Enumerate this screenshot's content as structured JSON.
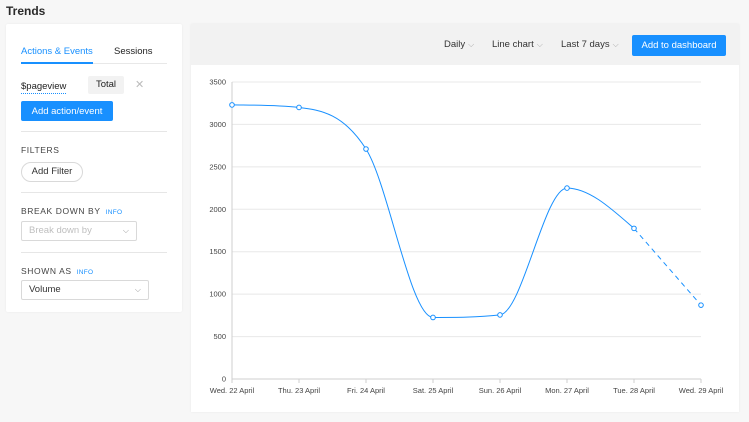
{
  "page": {
    "title": "Trends"
  },
  "sidebar": {
    "tabs": [
      {
        "label": "Actions & Events",
        "active": true
      },
      {
        "label": "Sessions",
        "active": false
      }
    ],
    "event": {
      "name": "$pageview",
      "math": "Total",
      "remove_icon": "close-icon"
    },
    "add_event_label": "Add action/event",
    "filters": {
      "heading": "FILTERS",
      "add_label": "Add Filter"
    },
    "breakdown": {
      "heading": "BREAK DOWN BY",
      "info": "INFO",
      "placeholder": "Break down by"
    },
    "shown_as": {
      "heading": "SHOWN AS",
      "info": "INFO",
      "value": "Volume"
    }
  },
  "toolbar": {
    "interval": "Daily",
    "chart_type": "Line chart",
    "date_range": "Last 7 days",
    "add_to_dashboard": "Add to dashboard"
  },
  "colors": {
    "accent": "#1890ff",
    "grid": "#e8e8e8",
    "background": "#f7f7f7"
  },
  "chart_data": {
    "type": "line",
    "categories": [
      "Wed. 22 April",
      "Thu. 23 April",
      "Fri. 24 April",
      "Sat. 25 April",
      "Sun. 26 April",
      "Mon. 27 April",
      "Tue. 28 April",
      "Wed. 29 April"
    ],
    "series": [
      {
        "values": [
          3230,
          3200,
          2710,
          725,
          755,
          2250,
          1775,
          870
        ],
        "color": "#1890ff",
        "dashed_last_segment": true
      }
    ],
    "y_ticks": [
      "0",
      "500",
      "1000",
      "1500",
      "2000",
      "2500",
      "3000",
      "3500"
    ],
    "ylim": [
      0,
      3500
    ],
    "grid": true,
    "legend": "none"
  }
}
